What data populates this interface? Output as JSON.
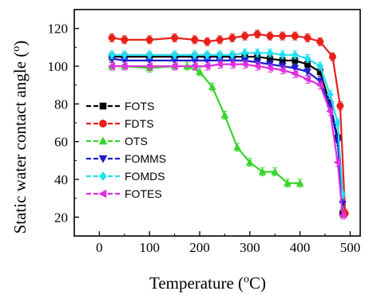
{
  "chart_data": {
    "type": "line",
    "xlabel": "Temperature (",
    "xlabel_sup": "o",
    "xlabel_tail": "C)",
    "ylabel": "Static water contact angle (",
    "ylabel_sup": "o",
    "ylabel_tail": ")",
    "xlim": [
      -50,
      520
    ],
    "ylim": [
      10,
      130
    ],
    "xticks": [
      0,
      100,
      200,
      300,
      400,
      500
    ],
    "yticks": [
      20,
      40,
      60,
      80,
      100,
      120
    ],
    "legend_position": "middle-left",
    "series": [
      {
        "name": "FOTS",
        "color": "#000000",
        "marker": "square",
        "x": [
          25,
          50,
          100,
          150,
          190,
          215,
          240,
          265,
          290,
          315,
          340,
          365,
          390,
          415,
          440,
          460,
          475,
          485
        ],
        "y": [
          105,
          105,
          105,
          105,
          105,
          105,
          105,
          105,
          105,
          105,
          104,
          103,
          103,
          101,
          97,
          80,
          62,
          22
        ]
      },
      {
        "name": "FDTS",
        "color": "#e8201a",
        "marker": "circle",
        "x": [
          25,
          50,
          100,
          150,
          190,
          215,
          240,
          265,
          290,
          315,
          340,
          365,
          390,
          415,
          440,
          465,
          480,
          490
        ],
        "y": [
          115,
          114,
          114,
          115,
          114,
          113,
          114,
          115,
          116,
          117,
          116,
          116,
          116,
          115,
          113,
          105,
          79,
          22
        ]
      },
      {
        "name": "OTS",
        "color": "#37d42a",
        "marker": "triangle-up",
        "x": [
          25,
          50,
          100,
          150,
          175,
          200,
          225,
          250,
          275,
          300,
          325,
          350,
          375,
          400
        ],
        "y": [
          100,
          100,
          99,
          100,
          100,
          97,
          89,
          74,
          57,
          49,
          44,
          44,
          38,
          38
        ]
      },
      {
        "name": "FOMMS",
        "color": "#1c1cd0",
        "marker": "triangle-down",
        "x": [
          25,
          50,
          100,
          150,
          190,
          215,
          240,
          265,
          290,
          315,
          340,
          365,
          390,
          415,
          440,
          460,
          475,
          485
        ],
        "y": [
          104,
          103,
          103,
          103,
          103,
          103,
          103,
          103,
          103,
          102,
          101,
          100,
          99,
          97,
          92,
          79,
          60,
          27
        ]
      },
      {
        "name": "FOMDS",
        "color": "#20e0f0",
        "marker": "diamond",
        "x": [
          25,
          50,
          100,
          150,
          190,
          215,
          240,
          265,
          290,
          315,
          340,
          365,
          390,
          415,
          440,
          460,
          475,
          485
        ],
        "y": [
          106,
          106,
          106,
          106,
          106,
          106,
          106,
          106,
          107,
          107,
          107,
          106,
          106,
          104,
          100,
          85,
          70,
          32
        ]
      },
      {
        "name": "FOTES",
        "color": "#e030e0",
        "marker": "triangle-left",
        "x": [
          25,
          50,
          100,
          150,
          190,
          215,
          240,
          265,
          290,
          315,
          340,
          365,
          390,
          415,
          440,
          460,
          475,
          485
        ],
        "y": [
          100,
          100,
          100,
          100,
          100,
          100,
          101,
          101,
          101,
          100,
          99,
          98,
          96,
          93,
          90,
          76,
          49,
          21
        ]
      }
    ]
  }
}
